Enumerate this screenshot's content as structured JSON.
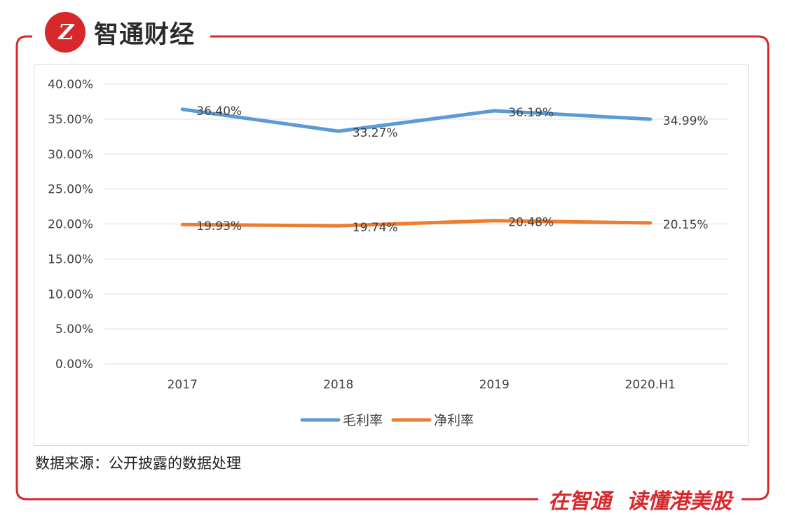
{
  "brand": {
    "logo_text": "Z",
    "name": "智通财经"
  },
  "colors": {
    "frame": "#d7282c",
    "gross": "#5b9bd5",
    "net": "#ed7d31",
    "grid": "#d9d9d9",
    "text": "#404040"
  },
  "chart_data": {
    "type": "line",
    "categories": [
      "2017",
      "2018",
      "2019",
      "2020.H1"
    ],
    "series": [
      {
        "name": "毛利率",
        "values": [
          36.4,
          33.27,
          36.19,
          34.99
        ],
        "labels": [
          "36.40%",
          "33.27%",
          "36.19%",
          "34.99%"
        ]
      },
      {
        "name": "净利率",
        "values": [
          19.93,
          19.74,
          20.48,
          20.15
        ],
        "labels": [
          "19.93%",
          "19.74%",
          "20.48%",
          "20.15%"
        ]
      }
    ],
    "ylim": [
      0,
      40
    ],
    "ytick_step": 5,
    "ytick_labels": [
      "0.00%",
      "5.00%",
      "10.00%",
      "15.00%",
      "20.00%",
      "25.00%",
      "30.00%",
      "35.00%",
      "40.00%"
    ],
    "grid": true,
    "legend_position": "bottom"
  },
  "footer": {
    "source": "数据来源：公开披露的数据处理",
    "slogan_left": "在智通",
    "slogan_right": "读懂港美股"
  }
}
